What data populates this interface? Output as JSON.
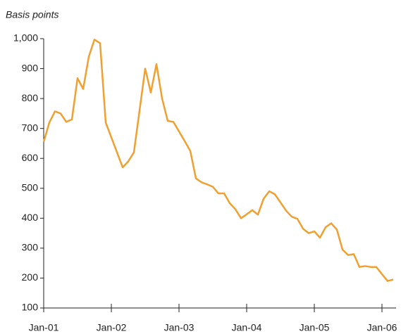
{
  "chart_data": {
    "type": "line",
    "y_label": "Basis points",
    "categories": [
      "Jan-01",
      null,
      null,
      null,
      null,
      null,
      null,
      null,
      null,
      null,
      null,
      null,
      "Jan-02",
      null,
      null,
      null,
      null,
      null,
      null,
      null,
      null,
      null,
      null,
      null,
      "Jan-03",
      null,
      null,
      null,
      null,
      null,
      null,
      null,
      null,
      null,
      null,
      null,
      "Jan-04",
      null,
      null,
      null,
      null,
      null,
      null,
      null,
      null,
      null,
      null,
      null,
      "Jan-05",
      null,
      null,
      null,
      null,
      null,
      null,
      null,
      null,
      null,
      null,
      null,
      "Jan-06",
      null,
      null
    ],
    "series": [
      {
        "name": null,
        "color": "#f0a030",
        "values": [
          655,
          720,
          757,
          750,
          722,
          730,
          868,
          832,
          940,
          997,
          985,
          720,
          670,
          620,
          570,
          590,
          620,
          760,
          900,
          820,
          915,
          800,
          725,
          722,
          690,
          658,
          625,
          533,
          520,
          513,
          505,
          483,
          483,
          450,
          430,
          400,
          413,
          427,
          412,
          465,
          490,
          480,
          453,
          425,
          405,
          398,
          365,
          350,
          356,
          335,
          370,
          383,
          362,
          295,
          277,
          280,
          237,
          240,
          237,
          237,
          213,
          190,
          195
        ]
      }
    ],
    "ylim": [
      100,
      1000
    ],
    "yticks": [
      100,
      200,
      300,
      400,
      500,
      600,
      700,
      800,
      900,
      {
        "value": 1000,
        "label": "1,000"
      }
    ],
    "grid": false
  }
}
